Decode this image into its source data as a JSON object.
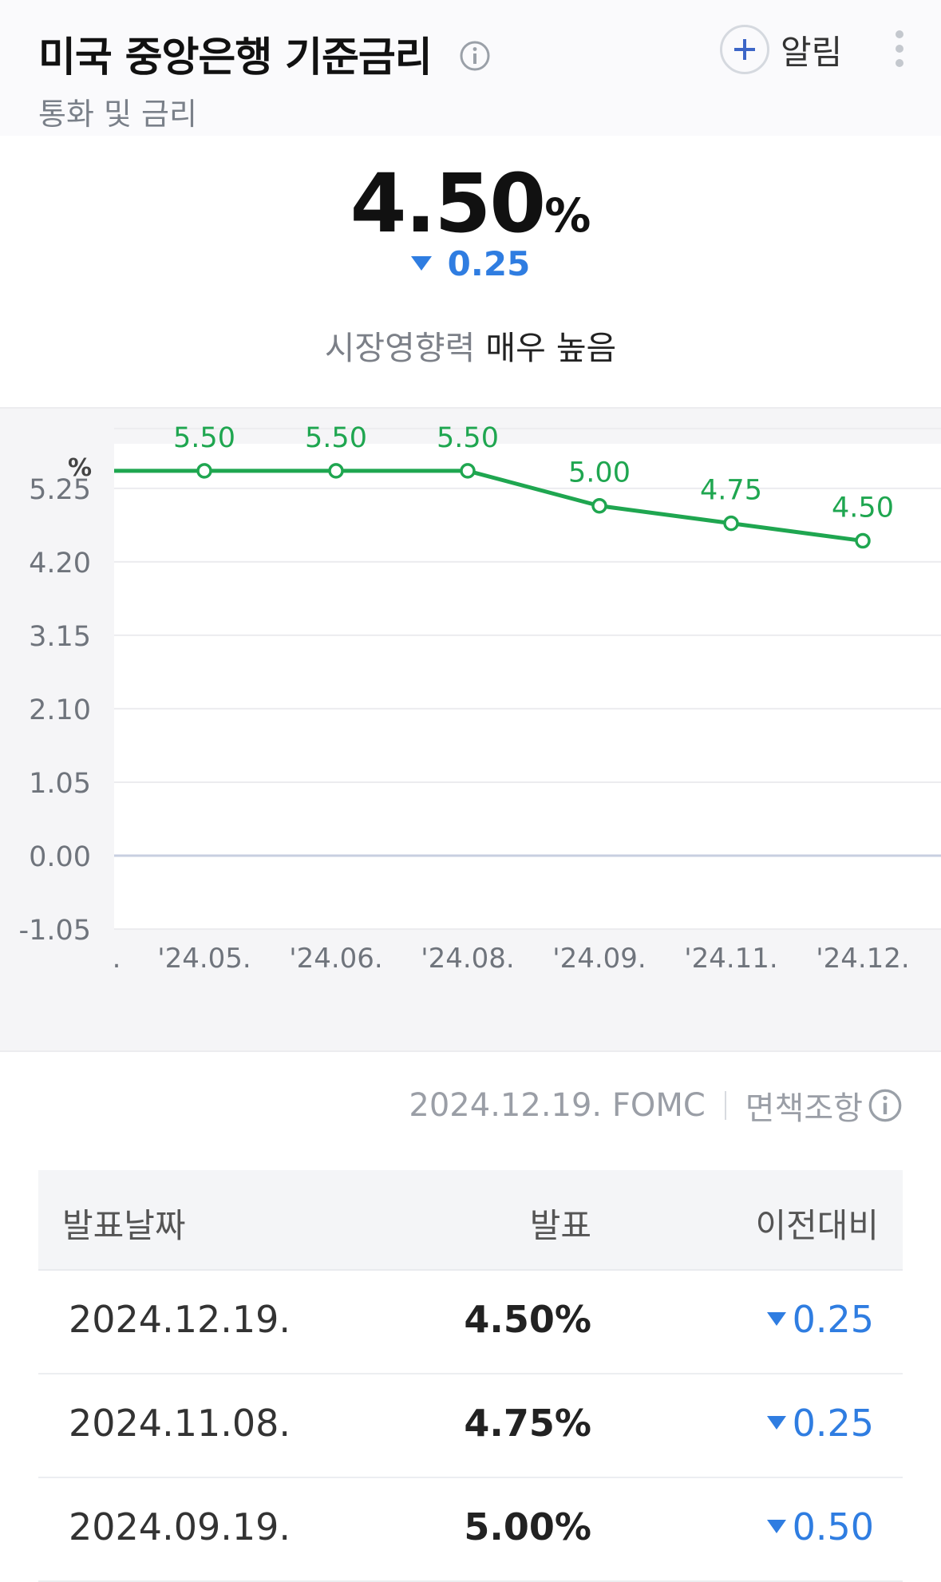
{
  "header": {
    "title": "미국 중앙은행 기준금리",
    "subtitle": "통화 및 금리",
    "alarm_label": "알림",
    "info_icon": "info-icon",
    "more_icon": "more-vertical-icon"
  },
  "summary": {
    "value": "4.50",
    "unit": "%",
    "change": "0.25",
    "change_direction": "down",
    "influence_label": "시장영향력",
    "influence_value": "매우 높음"
  },
  "colors": {
    "line": "#1fa650",
    "down": "#2f7de1"
  },
  "chart_data": {
    "type": "line",
    "ylabel": "%",
    "y_ticks": [
      "5.25",
      "4.20",
      "3.15",
      "2.10",
      "1.05",
      "0.00",
      "-1.05"
    ],
    "ylim": [
      -1.05,
      5.75
    ],
    "categories": [
      "'24.05.",
      "'24.06.",
      "'24.08.",
      "'24.09.",
      "'24.11.",
      "'24.12."
    ],
    "left_cutoff_label": ".",
    "series": [
      {
        "values": [
          5.5,
          5.5,
          5.5,
          5.0,
          4.75,
          4.5
        ]
      }
    ],
    "data_labels": [
      "5.50",
      "5.50",
      "5.50",
      "5.00",
      "4.75",
      "4.50"
    ],
    "grid": true
  },
  "footnote": {
    "source": "2024.12.19. FOMC",
    "disclaimer": "면책조항"
  },
  "table": {
    "headers": [
      "발표날짜",
      "발표",
      "이전대비"
    ],
    "rows": [
      {
        "date": "2024.12.19.",
        "rate": "4.50%",
        "change": "0.25",
        "direction": "down"
      },
      {
        "date": "2024.11.08.",
        "rate": "4.75%",
        "change": "0.25",
        "direction": "down"
      },
      {
        "date": "2024.09.19.",
        "rate": "5.00%",
        "change": "0.50",
        "direction": "down"
      }
    ]
  }
}
